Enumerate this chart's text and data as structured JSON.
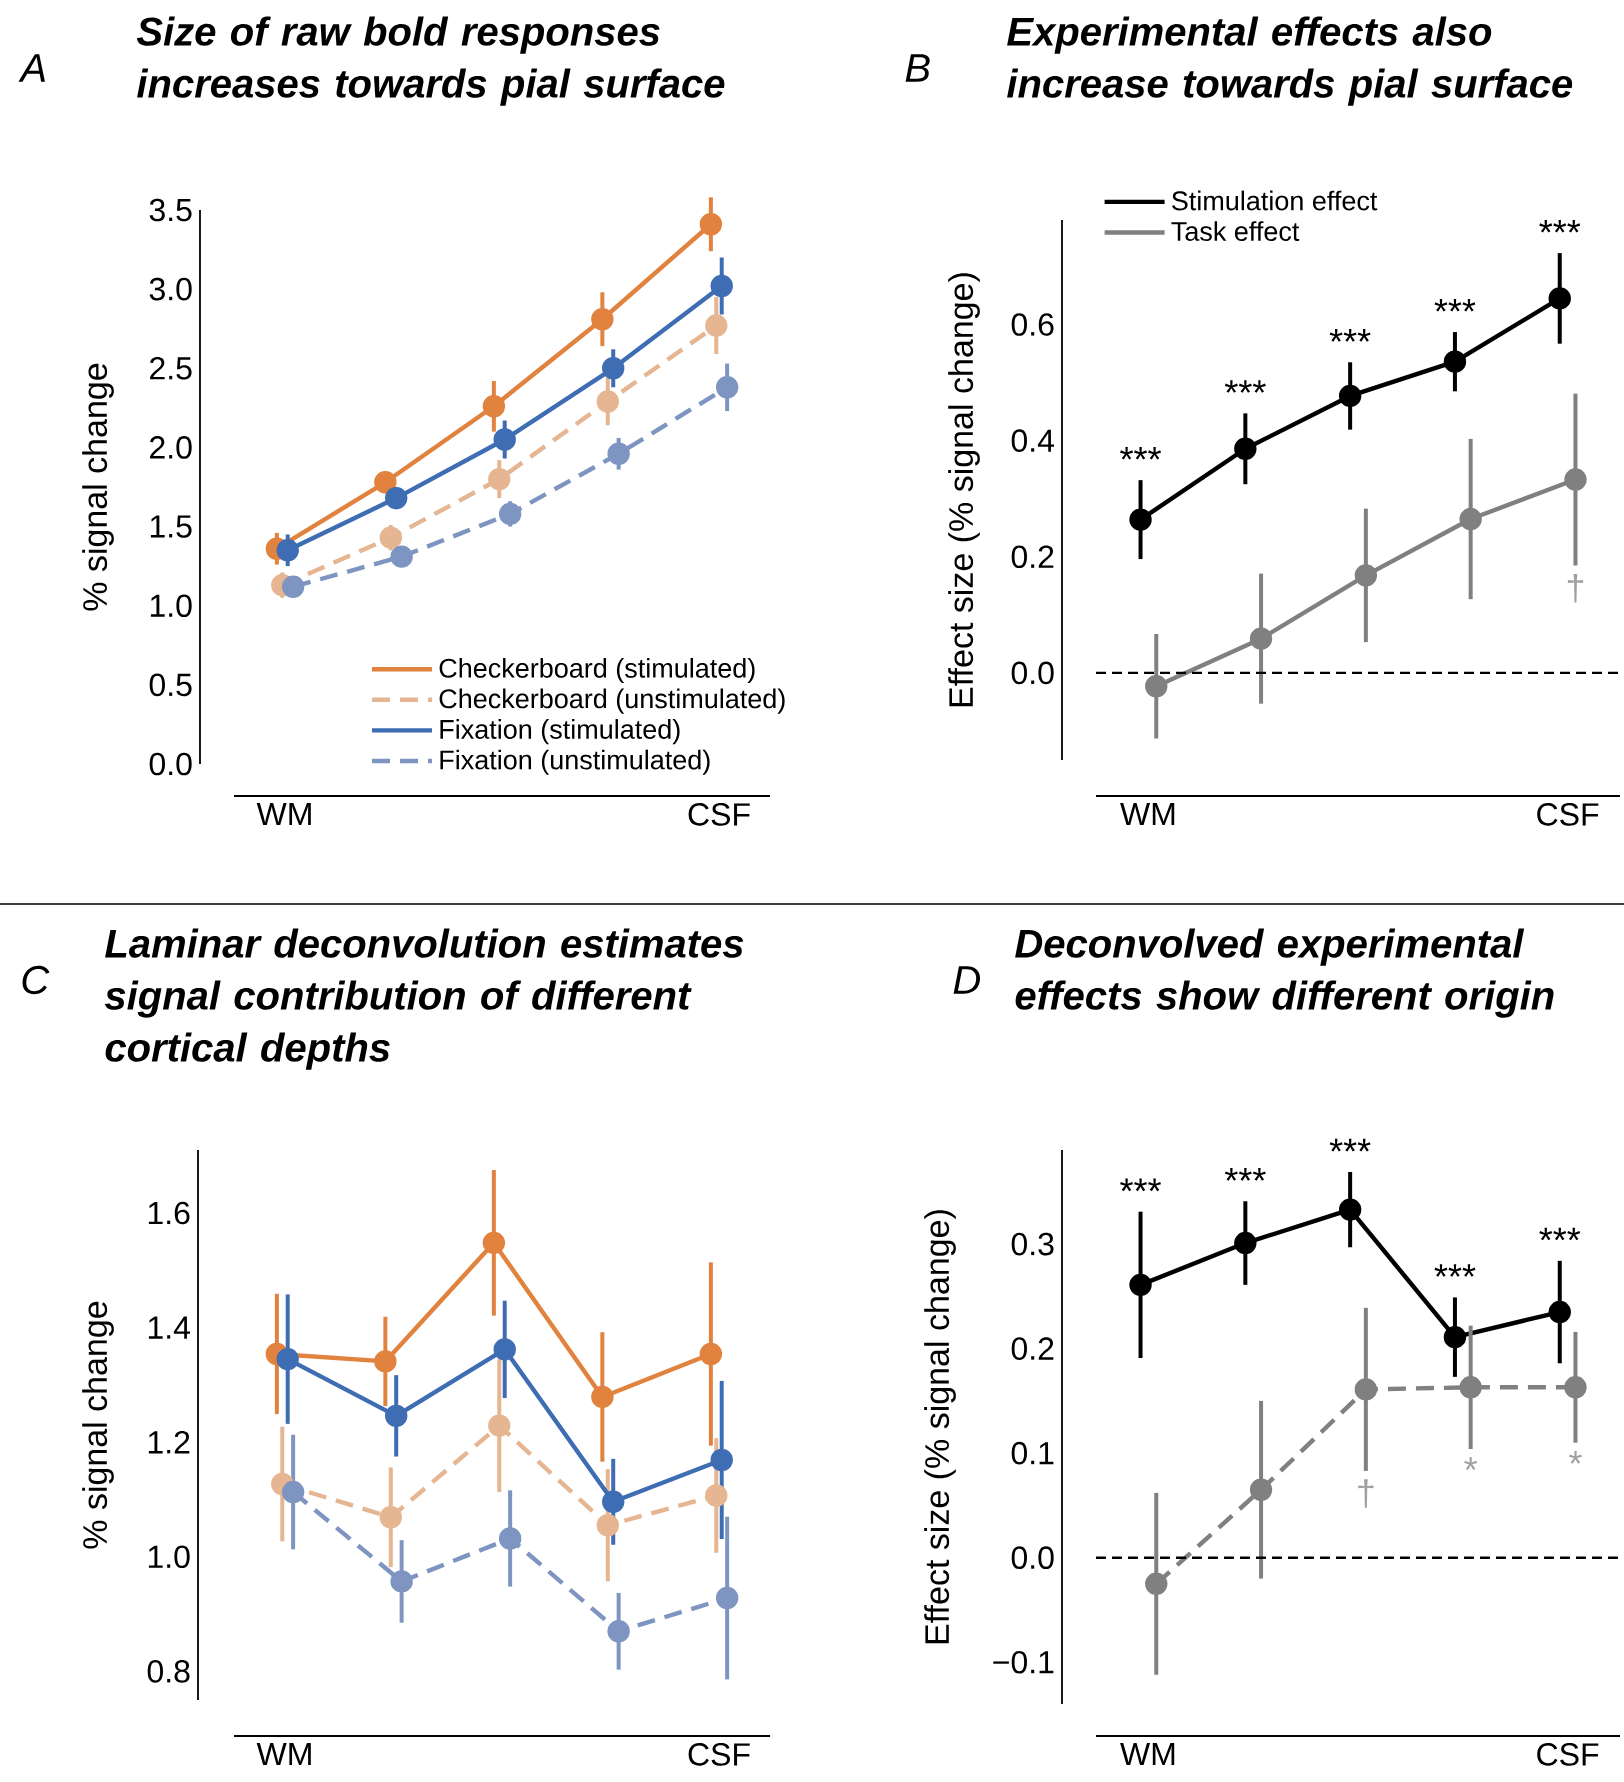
{
  "chart_data": [
    {
      "type": "line",
      "title": "Size of raw bold responses increases towards pial surface",
      "ylabel": "% signal change",
      "categories": [
        "WM",
        null,
        null,
        null,
        "CSF"
      ],
      "ylim": [
        0,
        3.5
      ],
      "yticks": [
        {
          "value": 0,
          "label": "0.0"
        },
        {
          "value": 0.5,
          "label": "0.5"
        },
        {
          "value": 1,
          "label": "1.0"
        },
        {
          "value": 1.5,
          "label": "1.5"
        },
        {
          "value": 2,
          "label": "2.0"
        },
        {
          "value": 2.5,
          "label": "2.5"
        },
        {
          "value": 3,
          "label": "3.0"
        },
        {
          "value": 3.5,
          "label": "3.5"
        }
      ],
      "marker": "circle",
      "legend": "bottom right",
      "series": [
        {
          "name": "Checkerboard (stimulated)",
          "color": "#e1823f",
          "line_style": "solid",
          "values": [
            1.36,
            1.78,
            2.26,
            2.81,
            3.41
          ],
          "errors": [
            0.1,
            0.07,
            0.16,
            0.17,
            0.17
          ]
        },
        {
          "name": "Checkerboard (unstimulated)",
          "color": "#e6b591",
          "line_style": "dashed",
          "values": [
            1.13,
            1.43,
            1.8,
            2.29,
            2.77
          ],
          "errors": [
            0.08,
            0.08,
            0.12,
            0.15,
            0.18
          ]
        },
        {
          "name": "Fixation (stimulated)",
          "color": "#3f6db3",
          "line_style": "solid",
          "values": [
            1.35,
            1.68,
            2.05,
            2.5,
            3.02
          ],
          "errors": [
            0.1,
            0.07,
            0.12,
            0.12,
            0.18
          ]
        },
        {
          "name": "Fixation (unstimulated)",
          "color": "#7d95c0",
          "line_style": "dashed",
          "values": [
            1.12,
            1.31,
            1.58,
            1.96,
            2.38
          ],
          "errors": [
            0.06,
            0.06,
            0.08,
            0.1,
            0.15
          ]
        }
      ],
      "annotations": [
        "A"
      ]
    },
    {
      "type": "line",
      "title": "Experimental effects also increase towards pial surface",
      "ylabel": "Effect size (% signal change)",
      "categories": [
        "WM",
        null,
        null,
        null,
        "CSF"
      ],
      "ylim": [
        -0.15,
        0.78
      ],
      "yticks": [
        {
          "value": 0,
          "label": "0.0"
        },
        {
          "value": 0.2,
          "label": "0.2"
        },
        {
          "value": 0.4,
          "label": "0.4"
        },
        {
          "value": 0.6,
          "label": "0.6"
        }
      ],
      "marker": "circle",
      "legend": "top left",
      "series": [
        {
          "name": "Stimulation effect",
          "color": "#000000",
          "line_style": "solid",
          "values": [
            0.264,
            0.386,
            0.477,
            0.536,
            0.645
          ],
          "errors": [
            0.068,
            0.061,
            0.058,
            0.051,
            0.078
          ],
          "value_labels": [
            "***",
            "***",
            "***",
            "***",
            "***"
          ]
        },
        {
          "name": "Task effect",
          "color": "#808080",
          "line_style": "solid",
          "values": [
            -0.023,
            0.059,
            0.168,
            0.265,
            0.333
          ],
          "errors": [
            0.09,
            0.112,
            0.115,
            0.138,
            0.148
          ],
          "value_labels": [
            null,
            null,
            null,
            null,
            "†"
          ]
        }
      ],
      "ref_lines": [
        {
          "axis": "y",
          "value": 0,
          "color": "#000000",
          "line_style": "dashed"
        }
      ],
      "annotations": [
        "B"
      ]
    },
    {
      "type": "line",
      "title": "Laminar deconvolution estimates signal contribution of different cortical depths",
      "ylabel": "% signal change",
      "categories": [
        "WM",
        null,
        null,
        null,
        "CSF"
      ],
      "ylim": [
        0.75,
        1.71
      ],
      "yticks": [
        {
          "value": 0.8,
          "label": "0.8"
        },
        {
          "value": 1,
          "label": "1.0"
        },
        {
          "value": 1.2,
          "label": "1.2"
        },
        {
          "value": 1.4,
          "label": "1.4"
        },
        {
          "value": 1.6,
          "label": "1.6"
        }
      ],
      "marker": "circle",
      "series": [
        {
          "color": "#e1823f",
          "line_style": "solid",
          "values": [
            1.354,
            1.341,
            1.548,
            1.279,
            1.354
          ],
          "errors": [
            0.105,
            0.078,
            0.127,
            0.113,
            0.16
          ]
        },
        {
          "color": "#e6b591",
          "line_style": "dashed",
          "values": [
            1.127,
            1.069,
            1.229,
            1.055,
            1.107
          ],
          "errors": [
            0.1,
            0.087,
            0.116,
            0.098,
            0.1
          ]
        },
        {
          "color": "#3f6db3",
          "line_style": "solid",
          "values": [
            1.345,
            1.246,
            1.362,
            1.096,
            1.169
          ],
          "errors": [
            0.113,
            0.071,
            0.085,
            0.075,
            0.138
          ]
        },
        {
          "color": "#7d95c0",
          "line_style": "dashed",
          "values": [
            1.113,
            0.957,
            1.032,
            0.87,
            0.928
          ],
          "errors": [
            0.1,
            0.072,
            0.084,
            0.067,
            0.142
          ]
        }
      ],
      "annotations": [
        "C"
      ]
    },
    {
      "type": "line",
      "title": "Deconvolved experimental effects show different origin",
      "ylabel": "Effect size (% signal change)",
      "categories": [
        "WM",
        null,
        null,
        null,
        "CSF"
      ],
      "ylim": [
        -0.14,
        0.39
      ],
      "yticks": [
        {
          "value": -0.1,
          "label": "−0.1"
        },
        {
          "value": 0,
          "label": "0.0"
        },
        {
          "value": 0.1,
          "label": "0.1"
        },
        {
          "value": 0.2,
          "label": "0.2"
        },
        {
          "value": 0.3,
          "label": "0.3"
        }
      ],
      "marker": "circle",
      "series": [
        {
          "color": "#000000",
          "line_style": "solid",
          "values": [
            0.261,
            0.301,
            0.333,
            0.211,
            0.235
          ],
          "errors": [
            0.07,
            0.04,
            0.036,
            0.038,
            0.049
          ],
          "value_labels": [
            "***",
            "***",
            "***",
            "***",
            "***"
          ]
        },
        {
          "color": "#808080",
          "line_style": "dashed",
          "values": [
            -0.025,
            0.065,
            0.161,
            0.163,
            0.163
          ],
          "errors": [
            0.087,
            0.085,
            0.078,
            0.059,
            0.053
          ],
          "value_labels": [
            null,
            null,
            "†",
            "*",
            "*"
          ]
        }
      ],
      "ref_lines": [
        {
          "axis": "y",
          "value": 0,
          "color": "#000000",
          "line_style": "dashed"
        }
      ],
      "annotations": [
        "D"
      ]
    }
  ]
}
